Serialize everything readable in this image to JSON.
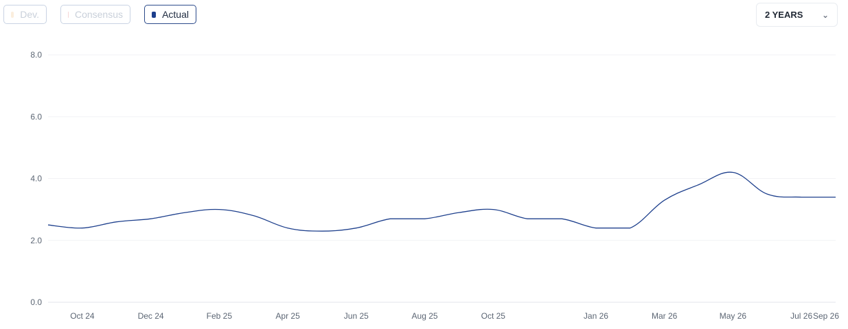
{
  "legend": {
    "dev": {
      "label": "Dev.",
      "color": "#fbeedd"
    },
    "consensus": {
      "label": "Consensus",
      "color": "#f6d6d6"
    },
    "actual": {
      "label": "Actual",
      "color": "#1d3f8c"
    }
  },
  "range_selector": {
    "value": "2 YEARS",
    "icon": "chevron-down-icon"
  },
  "chart_data": {
    "type": "line",
    "title": "",
    "xlabel": "",
    "ylabel": "",
    "ylim": [
      0,
      8
    ],
    "yticks": [
      "0.0",
      "2.0",
      "4.0",
      "6.0",
      "8.0"
    ],
    "xticks": [
      "Oct 24",
      "Dec 24",
      "Feb 25",
      "Apr 25",
      "Jun 25",
      "Aug 25",
      "Oct 25",
      "Jan 26",
      "Mar 26",
      "May 26",
      "Jul 26",
      "Sep 26"
    ],
    "grid": "horizontal",
    "series": [
      {
        "name": "Actual",
        "color": "#1d3f8c",
        "points": [
          {
            "x": "2024-09",
            "y": 2.5
          },
          {
            "x": "2024-10",
            "y": 2.4
          },
          {
            "x": "2024-11",
            "y": 2.6
          },
          {
            "x": "2024-12",
            "y": 2.7
          },
          {
            "x": "2025-01",
            "y": 2.9
          },
          {
            "x": "2025-02",
            "y": 3.0
          },
          {
            "x": "2025-03",
            "y": 2.8
          },
          {
            "x": "2025-04",
            "y": 2.4
          },
          {
            "x": "2025-05",
            "y": 2.3
          },
          {
            "x": "2025-06",
            "y": 2.4
          },
          {
            "x": "2025-07",
            "y": 2.7
          },
          {
            "x": "2025-08",
            "y": 2.7
          },
          {
            "x": "2025-09",
            "y": 2.9
          },
          {
            "x": "2025-10",
            "y": 3.0
          },
          {
            "x": "2025-11",
            "y": 2.7
          },
          {
            "x": "2025-12",
            "y": 2.7
          },
          {
            "x": "2026-01",
            "y": 2.4
          },
          {
            "x": "2026-02",
            "y": 2.4
          },
          {
            "x": "2026-03",
            "y": 3.3
          },
          {
            "x": "2026-04",
            "y": 3.8
          },
          {
            "x": "2026-05",
            "y": 4.2
          },
          {
            "x": "2026-06",
            "y": 3.5
          },
          {
            "x": "2026-07",
            "y": 3.4
          },
          {
            "x": "2026-08",
            "y": 3.4
          }
        ]
      }
    ]
  }
}
